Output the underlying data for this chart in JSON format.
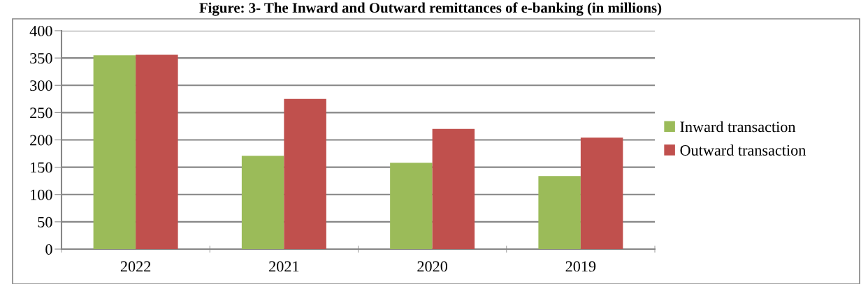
{
  "chart_data": {
    "type": "bar",
    "title": "Figure: 3- The Inward and Outward remittances of e-banking (in millions)",
    "categories": [
      "2022",
      "2021",
      "2020",
      "2019"
    ],
    "series": [
      {
        "name": "Inward transaction",
        "color": "#9bbb59",
        "values": [
          355,
          171,
          158,
          134
        ]
      },
      {
        "name": "Outward transaction",
        "color": "#c0504d",
        "values": [
          356,
          275,
          220,
          204
        ]
      }
    ],
    "ylim": [
      0,
      400
    ],
    "yticks": [
      0,
      50,
      100,
      150,
      200,
      250,
      300,
      350,
      400
    ],
    "grid": "y",
    "legend": "right"
  }
}
